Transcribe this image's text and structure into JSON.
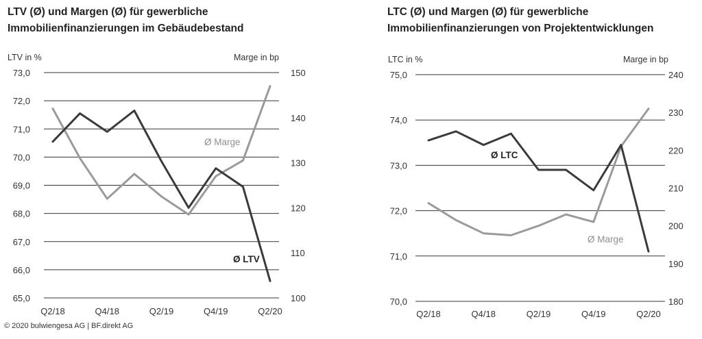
{
  "charts": [
    {
      "title_line1": "LTV (Ø) und Margen (Ø) für gewerbliche",
      "title_line2": "Immobilienfinanzierungen im Gebäudebestand"
    },
    {
      "title_line1": "LTC (Ø) und Margen (Ø) für gewerbliche",
      "title_line2": "Immobilienfinanzierungen von Projektentwicklungen"
    }
  ],
  "credit": "© 2020 bulwiengesa AG | BF.direkt AG",
  "colors": {
    "dark": "#3a3a3a",
    "light": "#9a9a9a",
    "grid": "#333333"
  },
  "chart_data": [
    {
      "type": "line",
      "title": "LTV (Ø) und Margen (Ø) für gewerbliche Immobilienfinanzierungen im Gebäudebestand",
      "xlabel": "",
      "ylabel": "LTV in %",
      "y2label": "Marge in bp",
      "x": [
        "Q2/18",
        "Q3/18",
        "Q4/18",
        "Q1/19",
        "Q2/19",
        "Q3/19",
        "Q4/19",
        "Q1/20",
        "Q2/20"
      ],
      "xticklabels": [
        "Q2/18",
        "Q4/18",
        "Q2/19",
        "Q4/19",
        "Q2/20"
      ],
      "ylim": [
        65,
        73
      ],
      "y2lim": [
        100,
        150
      ],
      "yticks": [
        "65,0",
        "66,0",
        "67,0",
        "68,0",
        "69,0",
        "70,0",
        "71,0",
        "72,0",
        "73,0"
      ],
      "y2ticks": [
        "100",
        "110",
        "120",
        "130",
        "140",
        "150"
      ],
      "grid": "horizontal",
      "series": [
        {
          "name": "Ø LTV",
          "axis": "left",
          "color": "#3a3a3a",
          "values": [
            70.55,
            71.55,
            70.9,
            71.65,
            69.85,
            68.2,
            69.6,
            68.95,
            65.6
          ]
        },
        {
          "name": "Ø Marge",
          "axis": "right",
          "color": "#9a9a9a",
          "values": [
            142.0,
            131.0,
            122.0,
            127.5,
            122.5,
            118.5,
            127.0,
            130.5,
            147.0
          ]
        }
      ]
    },
    {
      "type": "line",
      "title": "LTC (Ø) und Margen (Ø) für gewerbliche Immobilienfinanzierungen von Projektentwicklungen",
      "xlabel": "",
      "ylabel": "LTC in %",
      "y2label": "Marge in bp",
      "x": [
        "Q2/18",
        "Q3/18",
        "Q4/18",
        "Q1/19",
        "Q2/19",
        "Q3/19",
        "Q4/19",
        "Q1/20",
        "Q2/20"
      ],
      "xticklabels": [
        "Q2/18",
        "Q4/18",
        "Q2/19",
        "Q4/19",
        "Q2/20"
      ],
      "ylim": [
        70,
        75
      ],
      "y2lim": [
        180,
        240
      ],
      "yticks": [
        "70,0",
        "71,0",
        "72,0",
        "73,0",
        "74,0",
        "75,0"
      ],
      "y2ticks": [
        "180",
        "190",
        "200",
        "210",
        "220",
        "230",
        "240"
      ],
      "grid": "horizontal",
      "series": [
        {
          "name": "Ø LTC",
          "axis": "left",
          "color": "#3a3a3a",
          "values": [
            73.55,
            73.75,
            73.45,
            73.7,
            72.9,
            72.9,
            72.45,
            73.45,
            71.1
          ]
        },
        {
          "name": "Ø Marge",
          "axis": "right",
          "color": "#9a9a9a",
          "values": [
            206.0,
            201.5,
            198.0,
            197.5,
            200.0,
            203.0,
            201.0,
            221.0,
            231.0
          ]
        }
      ]
    }
  ]
}
